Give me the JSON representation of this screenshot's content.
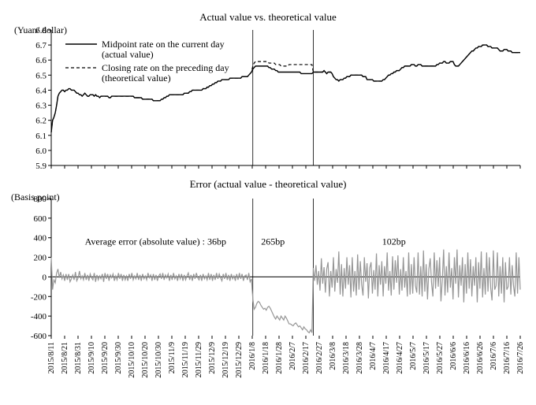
{
  "top_chart": {
    "type": "line",
    "title": "Actual value vs. theoretical value",
    "ylabel": "(Yuan/ dollar)",
    "ylim": [
      5.9,
      6.8
    ],
    "yticks": [
      5.9,
      6.0,
      6.1,
      6.2,
      6.3,
      6.4,
      6.5,
      6.6,
      6.7,
      6.8
    ],
    "x_count": 350,
    "vlines": [
      150,
      195
    ],
    "legend": {
      "s1": "Midpoint rate on the current day (actual value)",
      "s2": "Closing rate on the preceding day (theoretical value)"
    },
    "colors": {
      "s1": "#000000",
      "s2": "#000000",
      "bg": "#ffffff",
      "axis": "#000000",
      "tick": "#000000"
    },
    "line_width_s1": 1.4,
    "line_width_s2": 1.2,
    "dash_s2": "4,3",
    "series_actual": [
      6.12,
      6.2,
      6.22,
      6.25,
      6.3,
      6.36,
      6.38,
      6.39,
      6.4,
      6.4,
      6.39,
      6.4,
      6.4,
      6.41,
      6.41,
      6.4,
      6.4,
      6.4,
      6.39,
      6.38,
      6.38,
      6.37,
      6.37,
      6.36,
      6.37,
      6.38,
      6.37,
      6.36,
      6.36,
      6.37,
      6.37,
      6.37,
      6.36,
      6.37,
      6.36,
      6.36,
      6.35,
      6.36,
      6.36,
      6.36,
      6.36,
      6.36,
      6.36,
      6.35,
      6.35,
      6.36,
      6.36,
      6.36,
      6.36,
      6.36,
      6.36,
      6.36,
      6.36,
      6.36,
      6.36,
      6.36,
      6.36,
      6.36,
      6.36,
      6.36,
      6.36,
      6.36,
      6.35,
      6.35,
      6.35,
      6.35,
      6.35,
      6.35,
      6.34,
      6.34,
      6.34,
      6.34,
      6.34,
      6.34,
      6.34,
      6.34,
      6.33,
      6.33,
      6.33,
      6.33,
      6.33,
      6.33,
      6.34,
      6.34,
      6.35,
      6.35,
      6.36,
      6.36,
      6.37,
      6.37,
      6.37,
      6.37,
      6.37,
      6.37,
      6.37,
      6.37,
      6.37,
      6.37,
      6.37,
      6.38,
      6.38,
      6.38,
      6.38,
      6.39,
      6.39,
      6.4,
      6.4,
      6.4,
      6.4,
      6.4,
      6.4,
      6.4,
      6.4,
      6.41,
      6.41,
      6.41,
      6.42,
      6.42,
      6.43,
      6.43,
      6.44,
      6.44,
      6.45,
      6.45,
      6.46,
      6.46,
      6.46,
      6.47,
      6.47,
      6.47,
      6.47,
      6.47,
      6.47,
      6.48,
      6.48,
      6.48,
      6.48,
      6.48,
      6.48,
      6.48,
      6.48,
      6.48,
      6.49,
      6.49,
      6.49,
      6.49,
      6.49,
      6.5,
      6.51,
      6.52,
      6.54,
      6.55,
      6.56,
      6.56,
      6.56,
      6.56,
      6.56,
      6.56,
      6.56,
      6.56,
      6.56,
      6.56,
      6.55,
      6.55,
      6.54,
      6.54,
      6.54,
      6.53,
      6.53,
      6.52,
      6.52,
      6.52,
      6.52,
      6.52,
      6.52,
      6.52,
      6.52,
      6.52,
      6.52,
      6.52,
      6.52,
      6.52,
      6.52,
      6.52,
      6.52,
      6.52,
      6.51,
      6.51,
      6.51,
      6.51,
      6.51,
      6.51,
      6.51,
      6.51,
      6.51,
      6.52,
      6.52,
      6.52,
      6.52,
      6.52,
      6.52,
      6.52,
      6.52,
      6.53,
      6.52,
      6.51,
      6.52,
      6.52,
      6.52,
      6.51,
      6.49,
      6.48,
      6.47,
      6.47,
      6.46,
      6.47,
      6.47,
      6.47,
      6.48,
      6.48,
      6.49,
      6.49,
      6.49,
      6.5,
      6.5,
      6.5,
      6.5,
      6.5,
      6.5,
      6.5,
      6.5,
      6.5,
      6.49,
      6.49,
      6.49,
      6.47,
      6.47,
      6.47,
      6.47,
      6.47,
      6.46,
      6.46,
      6.46,
      6.46,
      6.46,
      6.46,
      6.46,
      6.47,
      6.47,
      6.48,
      6.49,
      6.5,
      6.5,
      6.51,
      6.51,
      6.52,
      6.52,
      6.53,
      6.53,
      6.53,
      6.54,
      6.55,
      6.55,
      6.56,
      6.56,
      6.56,
      6.56,
      6.56,
      6.57,
      6.57,
      6.57,
      6.56,
      6.56,
      6.57,
      6.57,
      6.57,
      6.56,
      6.56,
      6.56,
      6.56,
      6.56,
      6.56,
      6.56,
      6.56,
      6.56,
      6.56,
      6.56,
      6.57,
      6.57,
      6.58,
      6.58,
      6.58,
      6.59,
      6.59,
      6.58,
      6.58,
      6.58,
      6.59,
      6.59,
      6.59,
      6.57,
      6.56,
      6.56,
      6.56,
      6.57,
      6.58,
      6.59,
      6.6,
      6.61,
      6.62,
      6.63,
      6.64,
      6.65,
      6.66,
      6.66,
      6.67,
      6.68,
      6.68,
      6.69,
      6.69,
      6.69,
      6.7,
      6.7,
      6.7,
      6.7,
      6.69,
      6.69,
      6.69,
      6.68,
      6.68,
      6.68,
      6.68,
      6.68,
      6.67,
      6.66,
      6.66,
      6.66,
      6.67,
      6.67,
      6.67,
      6.66,
      6.66,
      6.66,
      6.65,
      6.65,
      6.65,
      6.65,
      6.65,
      6.65,
      6.65
    ],
    "series_theoretical": [
      6.12,
      6.2,
      6.22,
      6.25,
      6.3,
      6.36,
      6.38,
      6.39,
      6.4,
      6.4,
      6.39,
      6.4,
      6.4,
      6.41,
      6.41,
      6.4,
      6.4,
      6.4,
      6.39,
      6.38,
      6.38,
      6.37,
      6.37,
      6.36,
      6.37,
      6.38,
      6.37,
      6.36,
      6.36,
      6.37,
      6.37,
      6.37,
      6.36,
      6.37,
      6.36,
      6.36,
      6.35,
      6.36,
      6.36,
      6.36,
      6.36,
      6.36,
      6.36,
      6.35,
      6.35,
      6.36,
      6.36,
      6.36,
      6.36,
      6.36,
      6.36,
      6.36,
      6.36,
      6.36,
      6.36,
      6.36,
      6.36,
      6.36,
      6.36,
      6.36,
      6.36,
      6.36,
      6.35,
      6.35,
      6.35,
      6.35,
      6.35,
      6.35,
      6.34,
      6.34,
      6.34,
      6.34,
      6.34,
      6.34,
      6.34,
      6.34,
      6.33,
      6.33,
      6.33,
      6.33,
      6.33,
      6.33,
      6.34,
      6.34,
      6.35,
      6.35,
      6.36,
      6.36,
      6.37,
      6.37,
      6.37,
      6.37,
      6.37,
      6.37,
      6.37,
      6.37,
      6.37,
      6.37,
      6.37,
      6.38,
      6.38,
      6.38,
      6.38,
      6.39,
      6.39,
      6.4,
      6.4,
      6.4,
      6.4,
      6.4,
      6.4,
      6.4,
      6.4,
      6.41,
      6.41,
      6.41,
      6.42,
      6.42,
      6.43,
      6.43,
      6.44,
      6.44,
      6.45,
      6.45,
      6.46,
      6.46,
      6.46,
      6.47,
      6.47,
      6.47,
      6.47,
      6.47,
      6.47,
      6.48,
      6.48,
      6.48,
      6.48,
      6.48,
      6.48,
      6.48,
      6.48,
      6.48,
      6.49,
      6.49,
      6.49,
      6.49,
      6.49,
      6.5,
      6.51,
      6.52,
      6.56,
      6.58,
      6.59,
      6.59,
      6.59,
      6.59,
      6.59,
      6.59,
      6.59,
      6.59,
      6.59,
      6.59,
      6.58,
      6.58,
      6.58,
      6.58,
      6.58,
      6.57,
      6.57,
      6.57,
      6.57,
      6.56,
      6.56,
      6.56,
      6.56,
      6.56,
      6.56,
      6.57,
      6.57,
      6.57,
      6.57,
      6.57,
      6.57,
      6.57,
      6.57,
      6.57,
      6.57,
      6.57,
      6.57,
      6.57,
      6.57,
      6.57,
      6.57,
      6.57,
      6.57,
      6.52,
      6.52,
      6.52,
      6.52,
      6.52,
      6.52,
      6.52,
      6.52,
      6.53,
      6.52,
      6.51,
      6.52,
      6.52,
      6.52,
      6.51,
      6.49,
      6.48,
      6.47,
      6.47,
      6.46,
      6.47,
      6.47,
      6.47,
      6.48,
      6.48,
      6.49,
      6.49,
      6.49,
      6.5,
      6.5,
      6.5,
      6.5,
      6.5,
      6.5,
      6.5,
      6.5,
      6.5,
      6.49,
      6.49,
      6.49,
      6.47,
      6.47,
      6.47,
      6.47,
      6.47,
      6.46,
      6.46,
      6.46,
      6.46,
      6.46,
      6.46,
      6.46,
      6.47,
      6.47,
      6.48,
      6.49,
      6.5,
      6.5,
      6.51,
      6.51,
      6.52,
      6.52,
      6.53,
      6.53,
      6.53,
      6.54,
      6.55,
      6.55,
      6.56,
      6.56,
      6.56,
      6.56,
      6.56,
      6.57,
      6.57,
      6.57,
      6.56,
      6.56,
      6.57,
      6.57,
      6.57,
      6.56,
      6.56,
      6.56,
      6.56,
      6.56,
      6.56,
      6.56,
      6.56,
      6.56,
      6.56,
      6.56,
      6.57,
      6.57,
      6.58,
      6.58,
      6.58,
      6.59,
      6.59,
      6.58,
      6.58,
      6.58,
      6.59,
      6.59,
      6.59,
      6.57,
      6.56,
      6.56,
      6.56,
      6.57,
      6.58,
      6.59,
      6.6,
      6.61,
      6.62,
      6.63,
      6.64,
      6.65,
      6.66,
      6.66,
      6.67,
      6.68,
      6.68,
      6.69,
      6.69,
      6.69,
      6.7,
      6.7,
      6.7,
      6.7,
      6.69,
      6.69,
      6.69,
      6.68,
      6.68,
      6.68,
      6.68,
      6.68,
      6.67,
      6.66,
      6.66,
      6.66,
      6.67,
      6.67,
      6.67,
      6.66,
      6.66,
      6.66,
      6.65,
      6.65,
      6.65,
      6.65,
      6.65,
      6.65,
      6.65
    ]
  },
  "bottom_chart": {
    "type": "line",
    "title": "Error (actual value - theoretical value)",
    "ylabel": "(Basis point)",
    "ylim": [
      -600,
      800
    ],
    "yticks": [
      -600,
      -400,
      -200,
      0,
      200,
      400,
      600,
      800
    ],
    "x_count": 350,
    "vlines": [
      150,
      195
    ],
    "annotations": {
      "a1": "Average error (absolute value) : 36bp",
      "a2": "265bp",
      "a3": "102bp"
    },
    "anno_positions": {
      "a1": [
        25,
        330
      ],
      "a2": [
        165,
        330
      ],
      "a3": [
        255,
        330
      ]
    },
    "colors": {
      "line": "#969696",
      "axis": "#000000",
      "bg": "#ffffff"
    },
    "line_width": 1.2,
    "series": [
      200,
      -130,
      -30,
      -60,
      40,
      80,
      -10,
      50,
      -20,
      20,
      -40,
      30,
      -30,
      30,
      -50,
      -20,
      20,
      -30,
      50,
      -40,
      -10,
      60,
      -20,
      10,
      -30,
      40,
      -30,
      20,
      -40,
      30,
      -10,
      -30,
      40,
      -50,
      20,
      -30,
      10,
      -20,
      30,
      -50,
      40,
      -20,
      30,
      -40,
      20,
      -10,
      30,
      -40,
      10,
      -30,
      40,
      -20,
      30,
      -40,
      20,
      -30,
      10,
      -40,
      30,
      -20,
      40,
      -30,
      10,
      -20,
      40,
      -30,
      20,
      -40,
      30,
      -20,
      10,
      -30,
      40,
      -10,
      20,
      -40,
      30,
      -30,
      20,
      -40,
      10,
      30,
      -20,
      40,
      -30,
      20,
      -10,
      30,
      -40,
      20,
      -30,
      40,
      -20,
      10,
      -40,
      30,
      -20,
      30,
      -40,
      20,
      -30,
      10,
      40,
      -30,
      20,
      -40,
      30,
      -20,
      40,
      -10,
      -30,
      20,
      -40,
      30,
      -20,
      10,
      -30,
      40,
      -30,
      30,
      -40,
      20,
      -30,
      40,
      -20,
      30,
      -10,
      -40,
      30,
      -20,
      40,
      -30,
      20,
      -40,
      30,
      -20,
      10,
      -40,
      30,
      -30,
      40,
      -20,
      30,
      -40,
      10,
      20,
      -30,
      40,
      -50,
      -20,
      -220,
      -330,
      -310,
      -270,
      -250,
      -260,
      -290,
      -310,
      -330,
      -320,
      -340,
      -310,
      -300,
      -320,
      -350,
      -380,
      -410,
      -430,
      -400,
      -420,
      -440,
      -400,
      -420,
      -440,
      -400,
      -420,
      -450,
      -480,
      -480,
      -490,
      -500,
      -480,
      -470,
      -490,
      -510,
      -500,
      -520,
      -540,
      -510,
      -530,
      -540,
      -560,
      -570,
      -540,
      -570,
      90,
      -40,
      120,
      -80,
      60,
      -140,
      190,
      -70,
      100,
      -160,
      80,
      150,
      -200,
      60,
      -110,
      200,
      -150,
      80,
      -60,
      260,
      -180,
      130,
      -200,
      90,
      -120,
      200,
      -80,
      120,
      -210,
      200,
      -150,
      60,
      -190,
      230,
      -130,
      160,
      -80,
      -190,
      200,
      -50,
      140,
      -220,
      90,
      150,
      -170,
      70,
      -130,
      240,
      -200,
      120,
      -80,
      160,
      -200,
      110,
      -70,
      250,
      -140,
      60,
      -190,
      210,
      -130,
      170,
      -60,
      220,
      -180,
      80,
      -140,
      200,
      -110,
      60,
      -200,
      250,
      -180,
      130,
      -170,
      200,
      -90,
      -160,
      250,
      -180,
      110,
      -200,
      270,
      -150,
      130,
      -230,
      80,
      190,
      -60,
      -200,
      250,
      -120,
      170,
      -100,
      200,
      -250,
      -30,
      280,
      -190,
      110,
      -160,
      250,
      -110,
      90,
      -230,
      200,
      -70,
      280,
      -210,
      120,
      -90,
      200,
      -260,
      130,
      -170,
      250,
      -120,
      180,
      -200,
      110,
      -90,
      200,
      -260,
      150,
      -120,
      260,
      -210,
      90,
      -180,
      250,
      -150,
      200,
      -110,
      -240,
      270,
      -130,
      -90,
      250,
      -200,
      110,
      -170,
      200,
      -260,
      150,
      -130,
      -100,
      200,
      -180,
      120,
      -90,
      -200,
      250,
      -170,
      200,
      -130
    ]
  },
  "x_axis_labels": [
    "2015/8/11",
    "2015/8/21",
    "2015/8/31",
    "2015/9/10",
    "2015/9/20",
    "2015/9/30",
    "2015/10/10",
    "2015/10/20",
    "2015/10/30",
    "2015/11/9",
    "2015/11/19",
    "2015/11/29",
    "2015/12/9",
    "2015/12/19",
    "2015/12/29",
    "2016/1/8",
    "2016/1/18",
    "2016/1/28",
    "2016/2/7",
    "2016/2/17",
    "2016/2/27",
    "2016/3/8",
    "2016/3/18",
    "2016/3/28",
    "2016/4/7",
    "2016/4/17",
    "2016/4/27",
    "2016/5/7",
    "2016/5/17",
    "2016/5/27",
    "2016/6/6",
    "2016/6/16",
    "2016/6/26",
    "2016/7/6",
    "2016/7/16",
    "2016/7/26"
  ]
}
